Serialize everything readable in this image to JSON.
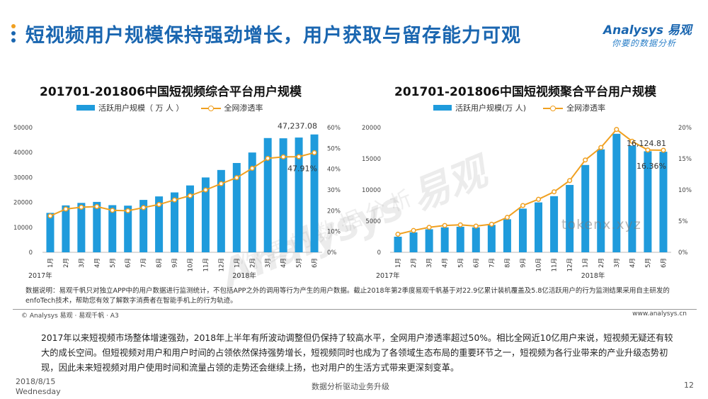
{
  "header": {
    "title": "短视频用户规模保持强劲增长，用户获取与留存能力可观",
    "logo_brand": "Analysys 易观",
    "logo_tagline": "你要的数据分析",
    "colors": {
      "title": "#1a66b0",
      "deco_dots": [
        "#f0a020",
        "#1a66b0",
        "#1a66b0"
      ]
    }
  },
  "chart_data": [
    {
      "type": "bar",
      "title": "201701-201806中国短视频综合平台用户规模",
      "legend": {
        "bar": "活跃用户规模（ 万 人 ）",
        "line": "全网渗透率",
        "placement": "top"
      },
      "categories": [
        "1月",
        "2月",
        "3月",
        "4月",
        "5月",
        "6月",
        "7月",
        "8月",
        "9月",
        "10月",
        "11月",
        "12月",
        "1月",
        "2月",
        "3月",
        "4月",
        "5月",
        "6月"
      ],
      "year_labels": [
        "2017年",
        "2018年"
      ],
      "series": [
        {
          "name": "活跃用户规模（ 万 人 ）",
          "kind": "bar",
          "axis": "left",
          "color": "#1f9bdc",
          "values": [
            15800,
            18800,
            19800,
            20200,
            18900,
            18700,
            21000,
            22400,
            24000,
            26800,
            30000,
            33000,
            35800,
            40000,
            45800,
            45700,
            46000,
            47237.08
          ]
        },
        {
          "name": "全网渗透率",
          "kind": "line",
          "axis": "right",
          "color": "#f0a020",
          "values": [
            17.5,
            20.8,
            21.7,
            22.0,
            20.2,
            20.0,
            21.5,
            23.0,
            25.2,
            27.2,
            30.0,
            33.0,
            35.9,
            40.4,
            45.2,
            45.9,
            46.0,
            47.91
          ]
        }
      ],
      "ylim_left": [
        0,
        50000
      ],
      "yticks_left": [
        "0",
        "10000",
        "20000",
        "30000",
        "40000",
        "50000"
      ],
      "ylim_right": [
        0,
        60
      ],
      "yticks_right": [
        "0%",
        "10%",
        "20%",
        "30%",
        "40%",
        "50%",
        "60%"
      ],
      "annotations": {
        "last_bar": "47,237.08",
        "last_line": "47.91%"
      },
      "grid": false
    },
    {
      "type": "bar",
      "title": "201701-201806中国短视频聚合平台用户规模",
      "legend": {
        "bar": "活跃用户规模(万 人)",
        "line": "全网渗透率",
        "placement": "top"
      },
      "categories": [
        "1月",
        "2月",
        "3月",
        "4月",
        "5月",
        "6月",
        "7月",
        "8月",
        "9月",
        "10月",
        "11月",
        "12月",
        "1月",
        "2月",
        "3月",
        "4月",
        "5月",
        "6月"
      ],
      "year_labels": [
        "2017年",
        "2018年"
      ],
      "series": [
        {
          "name": "活跃用户规模(万 人)",
          "kind": "bar",
          "axis": "left",
          "color": "#1f9bdc",
          "values": [
            2500,
            3200,
            3700,
            4000,
            4100,
            4000,
            4400,
            5300,
            7000,
            8000,
            9000,
            10800,
            14000,
            16500,
            19000,
            17100,
            16200,
            16124.81
          ]
        },
        {
          "name": "全网渗透率",
          "kind": "line",
          "axis": "right",
          "color": "#f0a020",
          "values": [
            2.9,
            3.5,
            4.0,
            4.3,
            4.4,
            4.2,
            4.5,
            5.6,
            7.5,
            8.5,
            9.7,
            11.5,
            14.8,
            16.8,
            19.7,
            17.8,
            16.4,
            16.36
          ]
        }
      ],
      "ylim_left": [
        0,
        20000
      ],
      "yticks_left": [
        "0",
        "5000",
        "10000",
        "15000",
        "20000"
      ],
      "ylim_right": [
        0,
        20
      ],
      "yticks_right": [
        "0%",
        "5%",
        "10%",
        "15%",
        "20%"
      ],
      "annotations": {
        "last_bar": "16,124.81",
        "last_line": "16.36%"
      },
      "grid": false
    }
  ],
  "note": "数据说明：易观千帆只对独立APP中的用户数据进行监测统计，不包括APP之外的调用等行为产生的用户数据。截止2018年第2季度易观千帆基于对22.9亿累计装机覆盖及5.8亿活跃用户的行为监测结果采用自主研发的enfoTech技术，帮助您有效了解数字消费者在智能手机上的行为轨迹。",
  "footer": {
    "left": "© Analysys 易观 · 易观千帆 · A3",
    "right": "www.analysys.cn"
  },
  "summary": "2017年以来短视频市场整体增速强劲，2018年上半年有所波动调整但仍保持了较高水平，全网用户渗透率超过50%。相比全网近10亿用户来说，短视频无疑还有较大的成长空间。但短视频对用户和用户时间的占领依然保持强势增长，短视频同时也成为了各领域生态布局的重要环节之一，短视频为各行业带来的产业升级态势初现，因此未来短视频对用户使用时间和流量占领的走势还会继续上扬，也对用户的生活方式带来更深刻变革。",
  "bottom": {
    "date": "2018/8/15",
    "weekday": "Wednesday",
    "slogan": "数据分析驱动业务升级",
    "page": "12"
  },
  "watermark": {
    "logo": "Analysys 易观",
    "tagline": "你要的数据分析",
    "text": "tokenx.xyz"
  }
}
